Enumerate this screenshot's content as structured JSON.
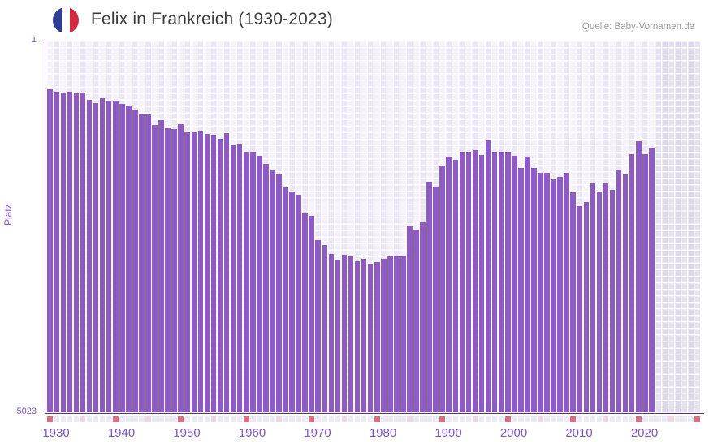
{
  "header": {
    "title": "Felix in Frankreich (1930-2023)",
    "source": "Quelle: Baby-Vornamen.de",
    "flag": "france-flag"
  },
  "y_axis": {
    "label": "Platz",
    "top_tick": "1",
    "bottom_tick": "5023"
  },
  "x_axis": {
    "tick_labels": [
      "1930",
      "1940",
      "1950",
      "1960",
      "1970",
      "1980",
      "1990",
      "2000",
      "2010",
      "2020"
    ]
  },
  "chart_data": {
    "type": "bar",
    "title": "Felix in Frankreich (1930-2023)",
    "xlabel": "",
    "ylabel": "Platz",
    "ylim": [
      1,
      5023
    ],
    "y_axis_inverted": true,
    "grid": true,
    "legend": false,
    "x_range_rendered": [
      1930,
      2029
    ],
    "last_data_year": 2022,
    "note_future_region": "darker shaded area after last data year",
    "categories": [
      1930,
      1931,
      1932,
      1933,
      1934,
      1935,
      1936,
      1937,
      1938,
      1939,
      1940,
      1941,
      1942,
      1943,
      1944,
      1945,
      1946,
      1947,
      1948,
      1949,
      1950,
      1951,
      1952,
      1953,
      1954,
      1955,
      1956,
      1957,
      1958,
      1959,
      1960,
      1961,
      1962,
      1963,
      1964,
      1965,
      1966,
      1967,
      1968,
      1969,
      1970,
      1971,
      1972,
      1973,
      1974,
      1975,
      1976,
      1977,
      1978,
      1979,
      1980,
      1981,
      1982,
      1983,
      1984,
      1985,
      1986,
      1987,
      1988,
      1989,
      1990,
      1991,
      1992,
      1993,
      1994,
      1995,
      1996,
      1997,
      1998,
      1999,
      2000,
      2001,
      2002,
      2003,
      2004,
      2005,
      2006,
      2007,
      2008,
      2009,
      2010,
      2011,
      2012,
      2013,
      2014,
      2015,
      2016,
      2017,
      2018,
      2019,
      2020,
      2021,
      2022
    ],
    "values": [
      658,
      688,
      702,
      688,
      713,
      702,
      801,
      845,
      779,
      815,
      815,
      856,
      878,
      933,
      995,
      995,
      1144,
      1078,
      1181,
      1199,
      1133,
      1243,
      1236,
      1232,
      1261,
      1269,
      1327,
      1250,
      1418,
      1407,
      1499,
      1499,
      1554,
      1671,
      1755,
      1810,
      1985,
      2040,
      2084,
      2340,
      2366,
      2695,
      2761,
      2888,
      2962,
      2896,
      2915,
      2980,
      2954,
      3016,
      2998,
      2954,
      2918,
      2907,
      2907,
      2503,
      2559,
      2461,
      1905,
      1978,
      1686,
      1572,
      1616,
      1507,
      1500,
      1481,
      1543,
      1353,
      1506,
      1499,
      1499,
      1554,
      1726,
      1572,
      1726,
      1785,
      1785,
      1872,
      1846,
      1785,
      2055,
      2241,
      2183,
      1931,
      2040,
      1931,
      2018,
      1748,
      1814,
      1536,
      1364,
      1536,
      1444
    ]
  },
  "timeline_strip": {
    "start_year": 1930,
    "end_year": 2029,
    "red_years": [
      1930,
      1940,
      1950,
      1960,
      1970,
      1980,
      1990,
      2000,
      2010,
      2020,
      2029
    ],
    "pink_years": [
      1935,
      1945,
      1955,
      1965,
      1975,
      1985,
      1995,
      2005,
      2015,
      2025
    ]
  },
  "colors": {
    "bar": "#8d5bc3",
    "axis": "#5a2b8f",
    "tick": "#7e57c2",
    "title": "#3d3d3d",
    "source": "#999999",
    "gridA": "#f5f2fb",
    "gridB": "#ebe6f5",
    "gridDarkA": "#e6e1f0",
    "gridDarkB": "#ded8ea",
    "stripLight": "#edeaf7",
    "stripPink": "#f3d7e0",
    "stripRed": "#e06e7e",
    "flagBlue": "#2d3f96",
    "flagRed": "#d5293d"
  }
}
